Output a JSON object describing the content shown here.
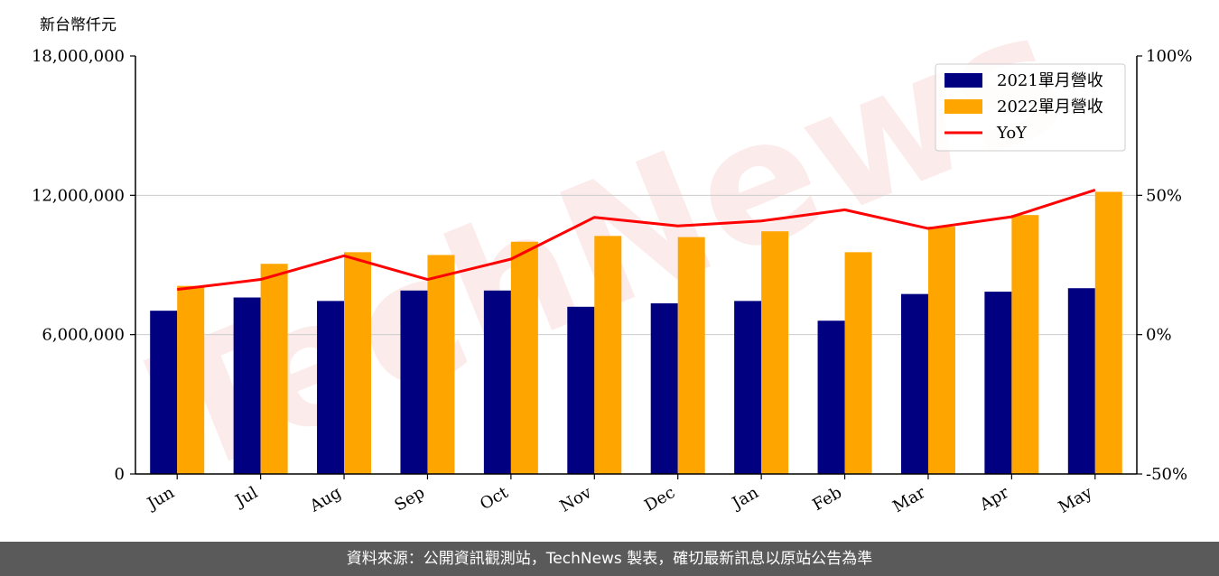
{
  "chart_data": {
    "type": "bar",
    "y_unit_label": "新台幣仟元",
    "categories": [
      "Jun",
      "Jul",
      "Aug",
      "Sep",
      "Oct",
      "Nov",
      "Dec",
      "Jan",
      "Feb",
      "Mar",
      "Apr",
      "May"
    ],
    "series": [
      {
        "name": "2021單月營收",
        "type": "bar",
        "color": "#000080",
        "values": [
          7030000,
          7600000,
          7450000,
          7900000,
          7900000,
          7200000,
          7350000,
          7450000,
          6600000,
          7750000,
          7850000,
          8000000
        ]
      },
      {
        "name": "2022單月營收",
        "type": "bar",
        "color": "#ffa500",
        "values": [
          8100000,
          9050000,
          9550000,
          9430000,
          10000000,
          10250000,
          10200000,
          10450000,
          9550000,
          10650000,
          11150000,
          12150000
        ]
      },
      {
        "name": "YoY",
        "type": "line",
        "axis": "right",
        "color": "#ff0000",
        "values": [
          16.2,
          19.8,
          28.3,
          19.8,
          27.1,
          42.1,
          39.0,
          40.8,
          44.8,
          38.1,
          42.3,
          51.9
        ]
      }
    ],
    "ylim": [
      0,
      18000000
    ],
    "yticks": [
      0,
      6000000,
      12000000,
      18000000
    ],
    "ytick_labels": [
      "0",
      "6,000,000",
      "12,000,000",
      "18,000,000"
    ],
    "y2lim": [
      -50,
      100
    ],
    "y2ticks": [
      -50,
      0,
      50,
      100
    ],
    "y2tick_labels": [
      "-50%",
      "0%",
      "50%",
      "100%"
    ],
    "grid": "horizontal",
    "legend_position": "top-right"
  },
  "watermark": "TechNews",
  "footer": {
    "text": "資料來源：公開資訊觀測站，TechNews 製表，確切最新訊息以原站公告為準"
  }
}
